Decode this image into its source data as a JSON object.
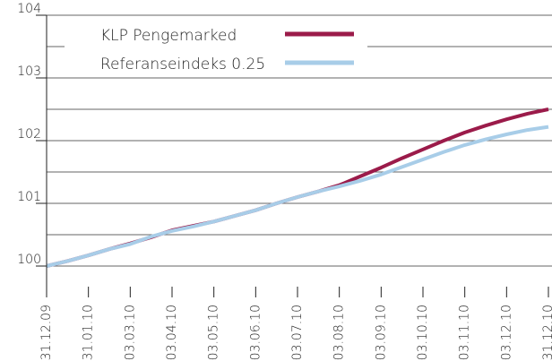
{
  "chart_data": {
    "type": "line",
    "categories": [
      "31.12.09",
      null,
      "31.01.10",
      null,
      "03.03.10",
      null,
      "03.04.10",
      null,
      "03.05.10",
      null,
      "03.06.10",
      null,
      "03.07.10",
      null,
      "03.08.10",
      null,
      "03.09.10",
      null,
      "03.10.10",
      null,
      "03.11.10",
      null,
      "03.12.10",
      null,
      "31.12.10"
    ],
    "series": [
      {
        "name": "KLP Pengemarked",
        "color": "#9b1b4a",
        "values": [
          100.0,
          100.08,
          100.17,
          100.27,
          100.36,
          100.46,
          100.57,
          100.64,
          100.71,
          100.8,
          100.89,
          101.0,
          101.1,
          101.19,
          101.29,
          101.43,
          101.57,
          101.72,
          101.86,
          102.0,
          102.13,
          102.24,
          102.34,
          102.43,
          102.5
        ]
      },
      {
        "name": "Referanseindeks 0.25",
        "color": "#a8cde8",
        "values": [
          100.0,
          100.08,
          100.17,
          100.27,
          100.35,
          100.47,
          100.56,
          100.63,
          100.71,
          100.8,
          100.89,
          101.0,
          101.1,
          101.19,
          101.27,
          101.36,
          101.46,
          101.58,
          101.7,
          101.82,
          101.93,
          102.02,
          102.1,
          102.17,
          102.22
        ]
      }
    ],
    "ylim": [
      99.5,
      104
    ],
    "yticks": [
      100,
      101,
      102,
      103,
      104
    ],
    "minor_yticks": [
      100.5,
      101.5,
      102.5,
      103.5
    ],
    "grid": true
  }
}
